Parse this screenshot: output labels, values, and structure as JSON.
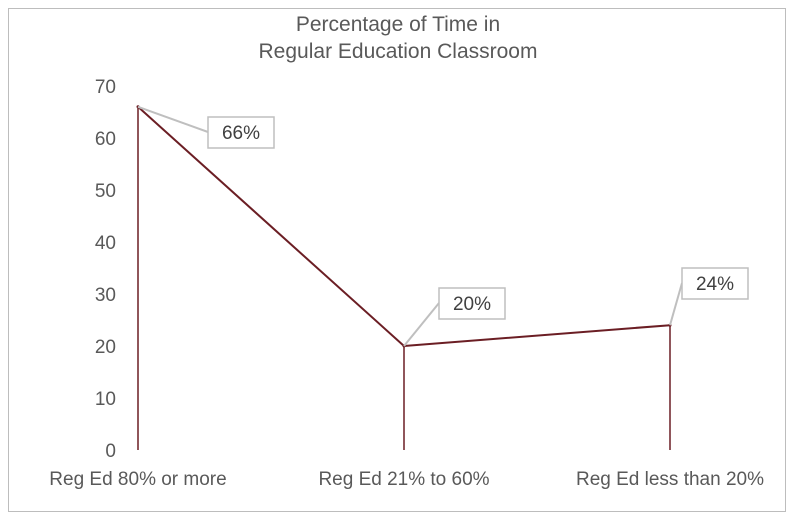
{
  "chart_data": {
    "type": "line",
    "title_lines": [
      "Percentage of Time in",
      "Regular Education Classroom"
    ],
    "categories": [
      "Reg Ed 80% or more",
      "Reg Ed 21% to 60%",
      "Reg Ed less than 20%"
    ],
    "values": [
      66,
      20,
      24
    ],
    "data_labels": [
      "66%",
      "20%",
      "24%"
    ],
    "ylim": [
      0,
      70
    ],
    "yticks": [
      "0",
      "10",
      "20",
      "30",
      "40",
      "50",
      "60",
      "70"
    ],
    "grid": false,
    "drop_lines": true,
    "colors": {
      "series": "#6b1e24",
      "callout_border": "#bfbfbf",
      "text": "#595959"
    }
  }
}
